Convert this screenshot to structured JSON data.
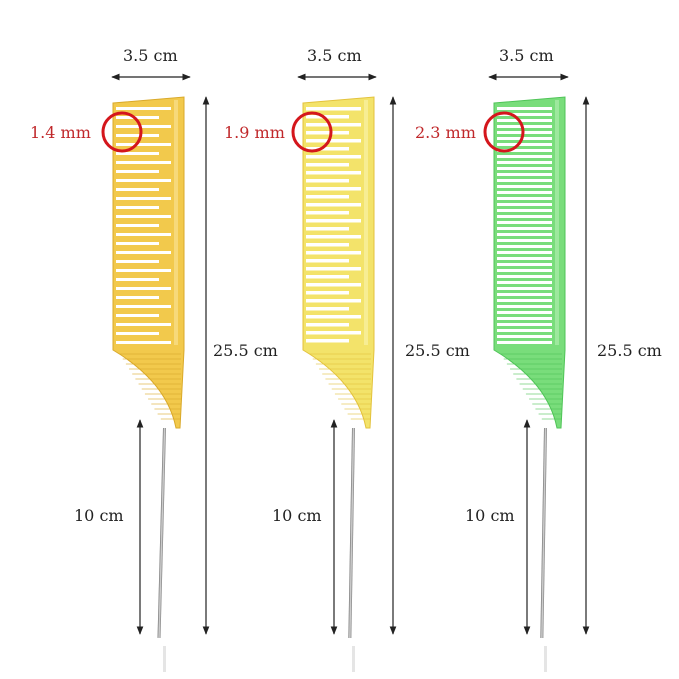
{
  "combs": [
    {
      "color_main": "#f2c94c",
      "color_light": "#f7dd86",
      "color_dark": "#d9a92a",
      "width_label": "3.5 cm",
      "tooth_label": "1.4 mm",
      "length_label": "25.5 cm",
      "pin_label": "10 cm"
    },
    {
      "color_main": "#f3e36a",
      "color_light": "#f8ef9e",
      "color_dark": "#e3c23c",
      "width_label": "3.5 cm",
      "tooth_label": "1.9 mm",
      "length_label": "25.5 cm",
      "pin_label": "10 cm"
    },
    {
      "color_main": "#79dd7b",
      "color_light": "#a6eba6",
      "color_dark": "#4fc457",
      "width_label": "3.5 cm",
      "tooth_label": "2.3 mm",
      "length_label": "25.5 cm",
      "pin_label": "10 cm"
    }
  ],
  "colors": {
    "dimension_line": "#222222",
    "highlight_circle": "#d4161c",
    "pin_metal": "#8a8a8a"
  }
}
